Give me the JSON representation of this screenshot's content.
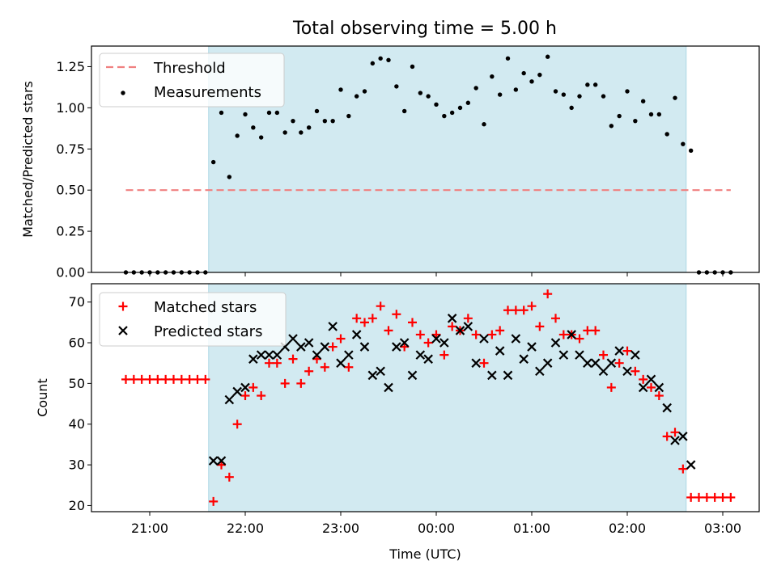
{
  "title": "Total observing time = 5.00 h",
  "colors": {
    "observing_band": "#add8e6",
    "threshold": "#f08080",
    "measurements": "#000000",
    "matched": "#ff0000",
    "predicted": "#000000"
  },
  "chart_data": [
    {
      "type": "scatter",
      "panel": "top",
      "ylabel": "Matched/Predicted stars",
      "ylim": [
        0.0,
        1.375
      ],
      "yticks": [
        "0.00",
        "0.25",
        "0.50",
        "0.75",
        "1.00",
        "1.25"
      ],
      "legend_position": "top-left",
      "observing_window": [
        "21:37",
        "02:37"
      ],
      "threshold": {
        "name": "Threshold",
        "value": 0.5,
        "x_range": [
          "20:45",
          "03:05"
        ],
        "style": "dashed"
      },
      "series": [
        {
          "name": "Measurements",
          "points": [
            [
              "20:45",
              0
            ],
            [
              "20:50",
              0
            ],
            [
              "20:55",
              0
            ],
            [
              "21:00",
              0
            ],
            [
              "21:05",
              0
            ],
            [
              "21:10",
              0
            ],
            [
              "21:15",
              0
            ],
            [
              "21:20",
              0
            ],
            [
              "21:25",
              0
            ],
            [
              "21:30",
              0
            ],
            [
              "21:35",
              0
            ],
            [
              "21:40",
              0.67
            ],
            [
              "21:45",
              0.97
            ],
            [
              "21:50",
              0.58
            ],
            [
              "21:55",
              0.83
            ],
            [
              "22:00",
              0.96
            ],
            [
              "22:05",
              0.88
            ],
            [
              "22:10",
              0.82
            ],
            [
              "22:15",
              0.97
            ],
            [
              "22:20",
              0.97
            ],
            [
              "22:25",
              0.85
            ],
            [
              "22:30",
              0.92
            ],
            [
              "22:35",
              0.85
            ],
            [
              "22:40",
              0.88
            ],
            [
              "22:45",
              0.98
            ],
            [
              "22:50",
              0.92
            ],
            [
              "22:55",
              0.92
            ],
            [
              "23:00",
              1.11
            ],
            [
              "23:05",
              0.95
            ],
            [
              "23:10",
              1.07
            ],
            [
              "23:15",
              1.1
            ],
            [
              "23:20",
              1.27
            ],
            [
              "23:25",
              1.3
            ],
            [
              "23:30",
              1.29
            ],
            [
              "23:35",
              1.13
            ],
            [
              "23:40",
              0.98
            ],
            [
              "23:45",
              1.25
            ],
            [
              "23:50",
              1.09
            ],
            [
              "23:55",
              1.07
            ],
            [
              "00:00",
              1.02
            ],
            [
              "00:05",
              0.95
            ],
            [
              "00:10",
              0.97
            ],
            [
              "00:15",
              1.0
            ],
            [
              "00:20",
              1.03
            ],
            [
              "00:25",
              1.12
            ],
            [
              "00:30",
              0.9
            ],
            [
              "00:35",
              1.19
            ],
            [
              "00:40",
              1.08
            ],
            [
              "00:45",
              1.3
            ],
            [
              "00:50",
              1.11
            ],
            [
              "00:55",
              1.21
            ],
            [
              "01:00",
              1.16
            ],
            [
              "01:05",
              1.2
            ],
            [
              "01:10",
              1.31
            ],
            [
              "01:15",
              1.1
            ],
            [
              "01:20",
              1.08
            ],
            [
              "01:25",
              1.0
            ],
            [
              "01:30",
              1.07
            ],
            [
              "01:35",
              1.14
            ],
            [
              "01:40",
              1.14
            ],
            [
              "01:45",
              1.07
            ],
            [
              "01:50",
              0.89
            ],
            [
              "01:55",
              0.95
            ],
            [
              "02:00",
              1.1
            ],
            [
              "02:05",
              0.92
            ],
            [
              "02:10",
              1.04
            ],
            [
              "02:15",
              0.96
            ],
            [
              "02:20",
              0.96
            ],
            [
              "02:25",
              0.84
            ],
            [
              "02:30",
              1.06
            ],
            [
              "02:35",
              0.78
            ],
            [
              "02:40",
              0.74
            ],
            [
              "02:45",
              0
            ],
            [
              "02:50",
              0
            ],
            [
              "02:55",
              0
            ],
            [
              "03:00",
              0
            ],
            [
              "03:05",
              0
            ]
          ]
        }
      ]
    },
    {
      "type": "scatter",
      "panel": "bottom",
      "xlabel": "Time (UTC)",
      "ylabel": "Count",
      "ylim": [
        18.5,
        74.5
      ],
      "yticks": [
        "20",
        "30",
        "40",
        "50",
        "60",
        "70"
      ],
      "xticks": [
        "21:00",
        "22:00",
        "23:00",
        "00:00",
        "01:00",
        "02:00",
        "03:00"
      ],
      "xlim": [
        "20:30",
        "03:30"
      ],
      "legend_position": "top-left",
      "observing_window": [
        "21:37",
        "02:37"
      ],
      "series": [
        {
          "name": "Matched stars",
          "marker": "+",
          "points": [
            [
              "20:45",
              51
            ],
            [
              "20:50",
              51
            ],
            [
              "20:55",
              51
            ],
            [
              "21:00",
              51
            ],
            [
              "21:05",
              51
            ],
            [
              "21:10",
              51
            ],
            [
              "21:15",
              51
            ],
            [
              "21:20",
              51
            ],
            [
              "21:25",
              51
            ],
            [
              "21:30",
              51
            ],
            [
              "21:35",
              51
            ],
            [
              "21:40",
              21
            ],
            [
              "21:45",
              30
            ],
            [
              "21:50",
              27
            ],
            [
              "21:55",
              40
            ],
            [
              "22:00",
              47
            ],
            [
              "22:05",
              49
            ],
            [
              "22:10",
              47
            ],
            [
              "22:15",
              55
            ],
            [
              "22:20",
              55
            ],
            [
              "22:25",
              50
            ],
            [
              "22:30",
              56
            ],
            [
              "22:35",
              50
            ],
            [
              "22:40",
              53
            ],
            [
              "22:45",
              56
            ],
            [
              "22:50",
              54
            ],
            [
              "22:55",
              59
            ],
            [
              "23:00",
              61
            ],
            [
              "23:05",
              54
            ],
            [
              "23:10",
              66
            ],
            [
              "23:15",
              65
            ],
            [
              "23:20",
              66
            ],
            [
              "23:25",
              69
            ],
            [
              "23:30",
              63
            ],
            [
              "23:35",
              67
            ],
            [
              "23:40",
              59
            ],
            [
              "23:45",
              65
            ],
            [
              "23:50",
              62
            ],
            [
              "23:55",
              60
            ],
            [
              "00:00",
              62
            ],
            [
              "00:05",
              57
            ],
            [
              "00:10",
              64
            ],
            [
              "00:15",
              63
            ],
            [
              "00:20",
              66
            ],
            [
              "00:25",
              62
            ],
            [
              "00:30",
              55
            ],
            [
              "00:35",
              62
            ],
            [
              "00:40",
              63
            ],
            [
              "00:45",
              68
            ],
            [
              "00:50",
              68
            ],
            [
              "00:55",
              68
            ],
            [
              "01:00",
              69
            ],
            [
              "01:05",
              64
            ],
            [
              "01:10",
              72
            ],
            [
              "01:15",
              66
            ],
            [
              "01:20",
              62
            ],
            [
              "01:25",
              62
            ],
            [
              "01:30",
              61
            ],
            [
              "01:35",
              63
            ],
            [
              "01:40",
              63
            ],
            [
              "01:45",
              57
            ],
            [
              "01:50",
              49
            ],
            [
              "01:55",
              55
            ],
            [
              "02:00",
              58
            ],
            [
              "02:05",
              53
            ],
            [
              "02:10",
              51
            ],
            [
              "02:15",
              49
            ],
            [
              "02:20",
              47
            ],
            [
              "02:25",
              37
            ],
            [
              "02:30",
              38
            ],
            [
              "02:35",
              29
            ],
            [
              "02:40",
              22
            ],
            [
              "02:45",
              22
            ],
            [
              "02:50",
              22
            ],
            [
              "02:55",
              22
            ],
            [
              "03:00",
              22
            ],
            [
              "03:05",
              22
            ]
          ]
        },
        {
          "name": "Predicted stars",
          "marker": "x",
          "points": [
            [
              "21:40",
              31
            ],
            [
              "21:45",
              31
            ],
            [
              "21:50",
              46
            ],
            [
              "21:55",
              48
            ],
            [
              "22:00",
              49
            ],
            [
              "22:05",
              56
            ],
            [
              "22:10",
              57
            ],
            [
              "22:15",
              57
            ],
            [
              "22:20",
              57
            ],
            [
              "22:25",
              59
            ],
            [
              "22:30",
              61
            ],
            [
              "22:35",
              59
            ],
            [
              "22:40",
              60
            ],
            [
              "22:45",
              57
            ],
            [
              "22:50",
              59
            ],
            [
              "22:55",
              64
            ],
            [
              "23:00",
              55
            ],
            [
              "23:05",
              57
            ],
            [
              "23:10",
              62
            ],
            [
              "23:15",
              59
            ],
            [
              "23:20",
              52
            ],
            [
              "23:25",
              53
            ],
            [
              "23:30",
              49
            ],
            [
              "23:35",
              59
            ],
            [
              "23:40",
              60
            ],
            [
              "23:45",
              52
            ],
            [
              "23:50",
              57
            ],
            [
              "23:55",
              56
            ],
            [
              "00:00",
              61
            ],
            [
              "00:05",
              60
            ],
            [
              "00:10",
              66
            ],
            [
              "00:15",
              63
            ],
            [
              "00:20",
              64
            ],
            [
              "00:25",
              55
            ],
            [
              "00:30",
              61
            ],
            [
              "00:35",
              52
            ],
            [
              "00:40",
              58
            ],
            [
              "00:45",
              52
            ],
            [
              "00:50",
              61
            ],
            [
              "00:55",
              56
            ],
            [
              "01:00",
              59
            ],
            [
              "01:05",
              53
            ],
            [
              "01:10",
              55
            ],
            [
              "01:15",
              60
            ],
            [
              "01:20",
              57
            ],
            [
              "01:25",
              62
            ],
            [
              "01:30",
              57
            ],
            [
              "01:35",
              55
            ],
            [
              "01:40",
              55
            ],
            [
              "01:45",
              53
            ],
            [
              "01:50",
              55
            ],
            [
              "01:55",
              58
            ],
            [
              "02:00",
              53
            ],
            [
              "02:05",
              57
            ],
            [
              "02:10",
              49
            ],
            [
              "02:15",
              51
            ],
            [
              "02:20",
              49
            ],
            [
              "02:25",
              44
            ],
            [
              "02:30",
              36
            ],
            [
              "02:35",
              37
            ],
            [
              "02:40",
              30
            ]
          ]
        }
      ]
    }
  ]
}
